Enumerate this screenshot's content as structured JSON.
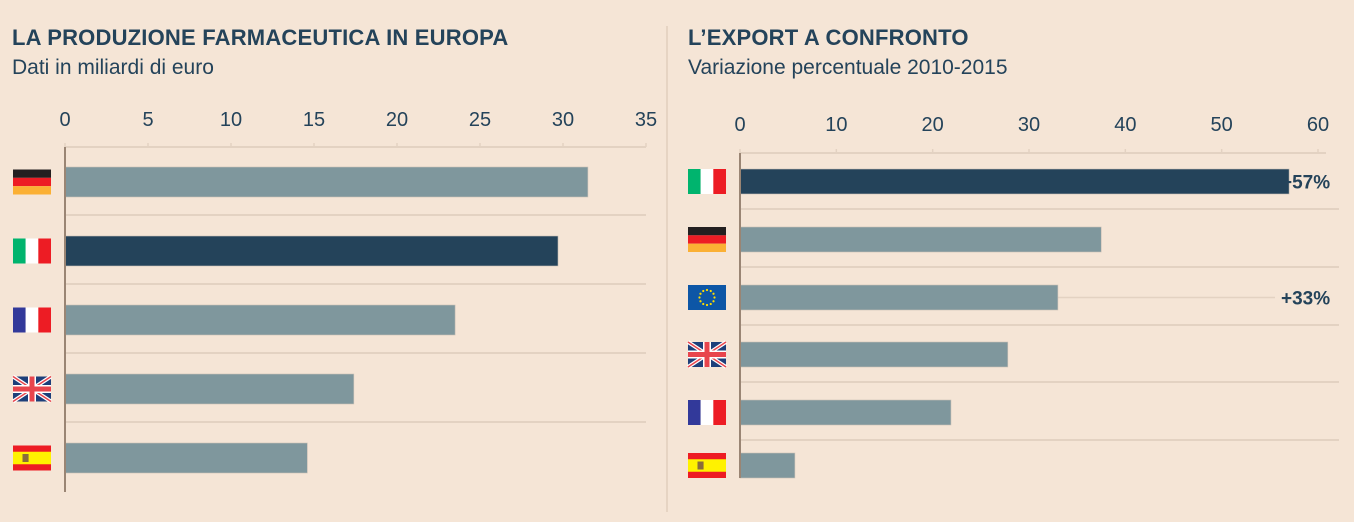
{
  "colors": {
    "background": "#f5e5d6",
    "highlight_bar": "#24435a",
    "default_bar": "#7f979d",
    "axis": "#9a8574",
    "gridline": "#e3d2c2",
    "text": "#24435a"
  },
  "chart_data": [
    {
      "type": "bar",
      "orientation": "horizontal",
      "title": "LA PRODUZIONE FARMACEUTICA IN EUROPA",
      "subtitle": "Dati in miliardi di euro",
      "xlim": [
        0,
        35
      ],
      "ticks": [
        "0",
        "5",
        "10",
        "15",
        "20",
        "25",
        "30",
        "35"
      ],
      "tick_values": [
        0,
        5,
        10,
        15,
        20,
        25,
        30,
        35
      ],
      "categories": [
        "Germania",
        "Italia",
        "Francia",
        "Regno Unito",
        "Spagna"
      ],
      "category_flags": [
        "flag-de-icon",
        "flag-it-icon",
        "flag-fr-icon",
        "flag-uk-icon",
        "flag-es-icon"
      ],
      "values": [
        31.5,
        29.7,
        23.5,
        17.4,
        14.6
      ],
      "highlight": [
        false,
        true,
        false,
        false,
        false
      ],
      "data_labels": [
        "",
        "",
        "",
        "",
        ""
      ]
    },
    {
      "type": "bar",
      "orientation": "horizontal",
      "title": "L’EXPORT A CONFRONTO",
      "subtitle": "Variazione percentuale 2010-2015",
      "xlim": [
        0,
        60
      ],
      "ticks": [
        "0",
        "10",
        "20",
        "30",
        "40",
        "50",
        "60"
      ],
      "tick_values": [
        0,
        10,
        20,
        30,
        40,
        50,
        60
      ],
      "categories": [
        "Italia",
        "Germania",
        "Unione Europea",
        "Regno Unito",
        "Francia",
        "Spagna"
      ],
      "category_flags": [
        "flag-it-icon",
        "flag-de-icon",
        "flag-eu-icon",
        "flag-uk-icon",
        "flag-fr-icon",
        "flag-es-icon"
      ],
      "values": [
        57,
        37.5,
        33,
        27.8,
        21.9,
        5.7
      ],
      "highlight": [
        true,
        false,
        false,
        false,
        false,
        false
      ],
      "data_labels": [
        "+57%",
        "",
        "+33%",
        "",
        "",
        ""
      ]
    }
  ]
}
